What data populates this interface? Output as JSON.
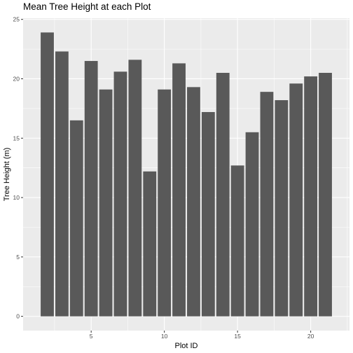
{
  "chart_data": {
    "type": "bar",
    "title": "Mean Tree Height at each Plot",
    "xlabel": "Plot ID",
    "ylabel": "Tree Height (m)",
    "x": [
      2,
      3,
      4,
      5,
      6,
      7,
      8,
      9,
      10,
      11,
      12,
      13,
      14,
      15,
      16,
      17,
      18,
      19,
      20,
      21
    ],
    "values": [
      23.9,
      22.3,
      16.5,
      21.5,
      19.1,
      20.6,
      21.6,
      12.2,
      19.1,
      21.3,
      19.3,
      17.2,
      20.5,
      12.7,
      15.5,
      18.9,
      18.2,
      19.6,
      20.2,
      20.5
    ],
    "xlim": [
      0.35,
      22.65
    ],
    "ylim": [
      -1.2,
      25.1
    ],
    "x_ticks": [
      5,
      10,
      15,
      20
    ],
    "y_ticks": [
      0,
      5,
      10,
      15,
      20,
      25
    ],
    "grid": true,
    "colors": {
      "bar": "#595959",
      "panel": "#ebebeb",
      "grid_major": "#ffffff"
    }
  }
}
